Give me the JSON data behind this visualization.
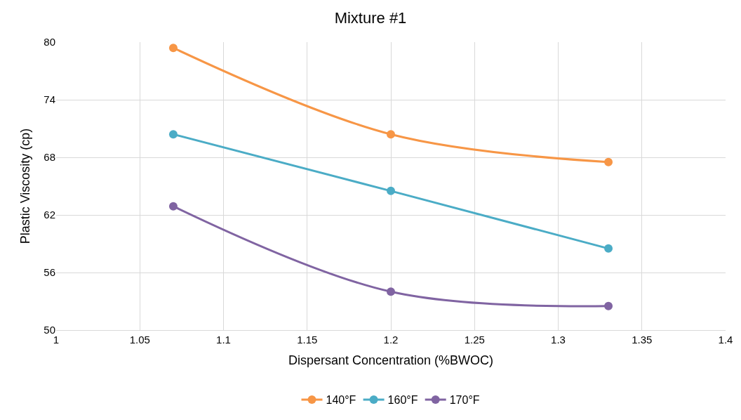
{
  "chart_data": {
    "type": "line",
    "title": "Mixture #1",
    "xlabel": "Dispersant Concentration (%BWOC)",
    "ylabel": "Plastic Viscosity (cp)",
    "x": [
      1.07,
      1.2,
      1.33
    ],
    "series": [
      {
        "name": "140°F",
        "color": "#f79646",
        "values": [
          79.4,
          70.4,
          67.5
        ]
      },
      {
        "name": "160°F",
        "color": "#4bacc6",
        "values": [
          70.4,
          64.5,
          58.5
        ]
      },
      {
        "name": "170°F",
        "color": "#8064a2",
        "values": [
          62.9,
          54.0,
          52.5
        ]
      }
    ],
    "xlim": [
      1,
      1.4
    ],
    "xticks": [
      1,
      1.05,
      1.1,
      1.15,
      1.2,
      1.25,
      1.3,
      1.35,
      1.4
    ],
    "ylim": [
      50,
      80
    ],
    "yticks": [
      50,
      56,
      62,
      68,
      74,
      80
    ],
    "grid": true,
    "legend": "bottom",
    "marker": "circle",
    "line_style": "solid"
  }
}
